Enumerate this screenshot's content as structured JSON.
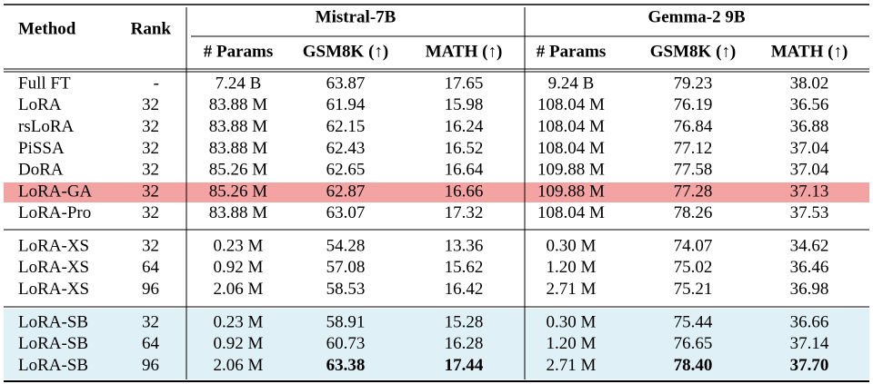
{
  "header": {
    "method": "Method",
    "rank": "Rank",
    "groups": [
      "Mistral-7B",
      "Gemma-2 9B"
    ],
    "columns": [
      "# Params",
      "GSM8K (↑)",
      "MATH (↑)",
      "# Params",
      "GSM8K (↑)",
      "MATH (↑)"
    ]
  },
  "sections": [
    [
      [
        "Full FT",
        "-",
        "7.24 B",
        "63.87",
        "17.65",
        "9.24 B",
        "79.23",
        "38.02"
      ],
      [
        "LoRA",
        "32",
        "83.88 M",
        "61.94",
        "15.98",
        "108.04 M",
        "76.19",
        "36.56"
      ],
      [
        "rsLoRA",
        "32",
        "83.88 M",
        "62.15",
        "16.24",
        "108.04 M",
        "76.84",
        "36.88"
      ],
      [
        "PiSSA",
        "32",
        "83.88 M",
        "62.43",
        "16.52",
        "108.04 M",
        "77.12",
        "37.04"
      ],
      [
        "DoRA",
        "32",
        "85.26 M",
        "62.65",
        "16.64",
        "109.88 M",
        "77.58",
        "37.04"
      ],
      [
        "LoRA-GA",
        "32",
        "85.26 M",
        "62.87",
        "16.66",
        "109.88 M",
        "77.28",
        "37.13"
      ],
      [
        "LoRA-Pro",
        "32",
        "83.88 M",
        "63.07",
        "17.32",
        "108.04 M",
        "78.26",
        "37.53"
      ]
    ],
    [
      [
        "LoRA-XS",
        "32",
        "0.23 M",
        "54.28",
        "13.36",
        "0.30 M",
        "74.07",
        "34.62"
      ],
      [
        "LoRA-XS",
        "64",
        "0.92 M",
        "57.08",
        "15.62",
        "1.20 M",
        "75.02",
        "36.46"
      ],
      [
        "LoRA-XS",
        "96",
        "2.06 M",
        "58.53",
        "16.42",
        "2.71 M",
        "75.21",
        "36.98"
      ]
    ],
    [
      [
        "LoRA-SB",
        "32",
        "0.23 M",
        "58.91",
        "15.28",
        "0.30 M",
        "75.44",
        "36.66"
      ],
      [
        "LoRA-SB",
        "64",
        "0.92 M",
        "60.73",
        "16.28",
        "1.20 M",
        "76.65",
        "37.14"
      ],
      [
        "LoRA-SB",
        "96",
        "2.06 M",
        "63.38",
        "17.44",
        "2.71 M",
        "78.40",
        "37.70"
      ]
    ]
  ]
}
